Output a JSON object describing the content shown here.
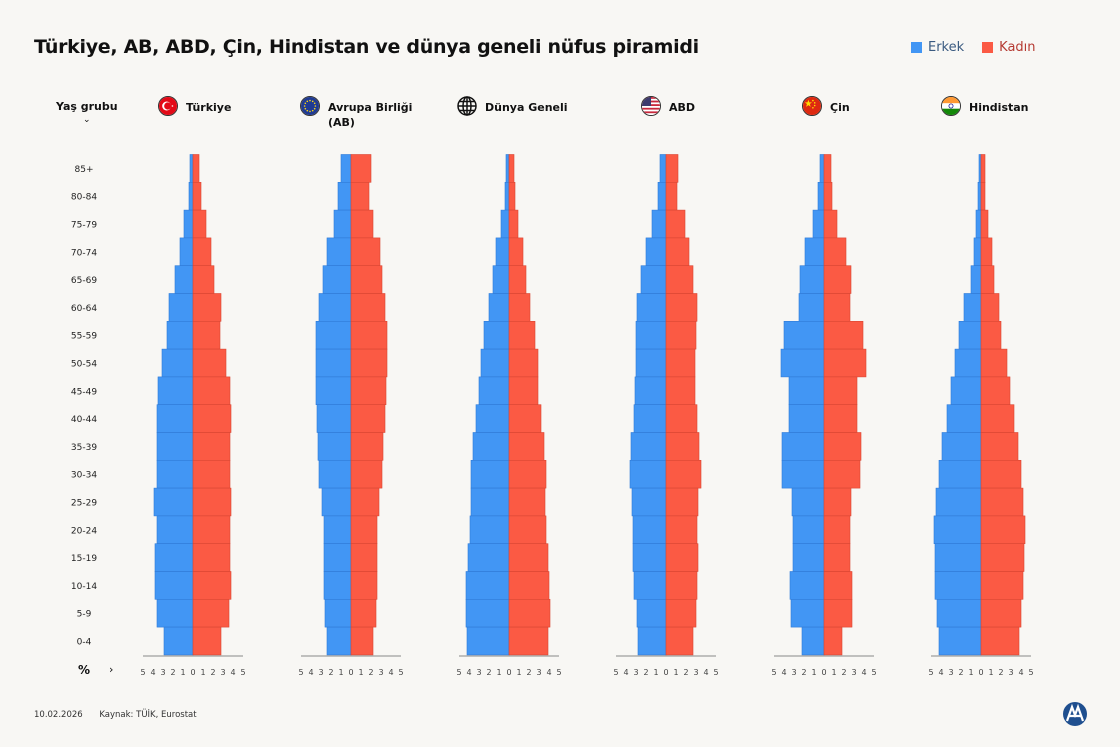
{
  "title": "Türkiye, AB, ABD, Çin, Hindistan ve dünya geneli nüfus piramidi",
  "legend": {
    "male": "Erkek",
    "female": "Kadın"
  },
  "colors": {
    "male": "#4296f4",
    "female": "#fb5a44",
    "male_text": "#3a5a80",
    "female_text": "#b53a32",
    "background": "#f8f7f4"
  },
  "age_header": "Yaş grubu",
  "axis_unit": "%",
  "footer": {
    "date": "10.02.2026",
    "source": "Kaynak: TÜİK, Eurostat"
  },
  "logo": "AA",
  "chart_data": {
    "type": "bar",
    "subtype": "population-pyramid",
    "title": "Türkiye, AB, ABD, Çin, Hindistan ve dünya geneli nüfus piramidi",
    "ylabel": "Yaş grubu",
    "xlabel": "%",
    "xlim": [
      -5,
      5
    ],
    "ticks": [
      "5",
      "4",
      "3",
      "2",
      "1",
      "0",
      "1",
      "2",
      "3",
      "4",
      "5"
    ],
    "grid": false,
    "legend_placement": "top-right",
    "categories": [
      "85+",
      "80-84",
      "75-79",
      "70-74",
      "65-69",
      "60-64",
      "55-59",
      "50-54",
      "45-49",
      "40-44",
      "35-39",
      "30-34",
      "25-29",
      "20-24",
      "15-19",
      "10-14",
      "5-9",
      "0-4"
    ],
    "panels": [
      {
        "name": "Türkiye",
        "flag": "turkey-flag",
        "male": [
          0.3,
          0.4,
          0.9,
          1.3,
          1.8,
          2.4,
          2.6,
          3.1,
          3.5,
          3.6,
          3.6,
          3.6,
          3.9,
          3.6,
          3.8,
          3.8,
          3.6,
          2.9
        ],
        "female": [
          0.6,
          0.8,
          1.3,
          1.8,
          2.1,
          2.8,
          2.7,
          3.3,
          3.7,
          3.8,
          3.7,
          3.7,
          3.8,
          3.7,
          3.7,
          3.8,
          3.6,
          2.8
        ]
      },
      {
        "name": "Avrupa Birliği (AB)",
        "flag": "eu-flag",
        "male": [
          1.0,
          1.3,
          1.7,
          2.4,
          2.8,
          3.2,
          3.5,
          3.5,
          3.5,
          3.4,
          3.3,
          3.2,
          2.9,
          2.7,
          2.7,
          2.7,
          2.6,
          2.4
        ],
        "female": [
          2.0,
          1.8,
          2.2,
          2.9,
          3.1,
          3.4,
          3.6,
          3.6,
          3.5,
          3.4,
          3.2,
          3.1,
          2.8,
          2.6,
          2.6,
          2.6,
          2.5,
          2.2
        ]
      },
      {
        "name": "Dünya Geneli",
        "flag": "globe-icon",
        "male": [
          0.3,
          0.4,
          0.8,
          1.3,
          1.6,
          2.0,
          2.5,
          2.8,
          3.0,
          3.3,
          3.6,
          3.8,
          3.8,
          3.9,
          4.1,
          4.3,
          4.3,
          4.2
        ],
        "female": [
          0.5,
          0.6,
          0.9,
          1.4,
          1.7,
          2.1,
          2.6,
          2.9,
          2.9,
          3.2,
          3.5,
          3.7,
          3.6,
          3.7,
          3.9,
          4.0,
          4.1,
          3.9
        ]
      },
      {
        "name": "ABD",
        "flag": "usa-flag",
        "male": [
          0.6,
          0.8,
          1.4,
          2.0,
          2.5,
          2.9,
          3.0,
          3.0,
          3.1,
          3.2,
          3.5,
          3.6,
          3.4,
          3.3,
          3.3,
          3.2,
          2.9,
          2.8
        ],
        "female": [
          1.2,
          1.1,
          1.9,
          2.3,
          2.7,
          3.1,
          3.0,
          2.9,
          2.9,
          3.1,
          3.3,
          3.5,
          3.2,
          3.1,
          3.2,
          3.1,
          3.0,
          2.7
        ]
      },
      {
        "name": "Çin",
        "flag": "china-flag",
        "male": [
          0.4,
          0.6,
          1.1,
          1.9,
          2.4,
          2.5,
          4.0,
          4.3,
          3.5,
          3.5,
          4.2,
          4.2,
          3.2,
          3.1,
          3.1,
          3.4,
          3.3,
          2.2
        ],
        "female": [
          0.7,
          0.8,
          1.3,
          2.2,
          2.7,
          2.6,
          3.9,
          4.2,
          3.3,
          3.3,
          3.7,
          3.6,
          2.7,
          2.6,
          2.6,
          2.8,
          2.8,
          1.8
        ]
      },
      {
        "name": "Hindistan",
        "flag": "india-flag",
        "male": [
          0.2,
          0.3,
          0.5,
          0.7,
          1.0,
          1.7,
          2.2,
          2.6,
          3.0,
          3.4,
          3.9,
          4.2,
          4.5,
          4.7,
          4.6,
          4.6,
          4.4,
          4.2
        ],
        "female": [
          0.4,
          0.4,
          0.7,
          1.1,
          1.3,
          1.8,
          2.0,
          2.6,
          2.9,
          3.3,
          3.7,
          4.0,
          4.2,
          4.4,
          4.3,
          4.2,
          4.0,
          3.8
        ]
      }
    ]
  }
}
